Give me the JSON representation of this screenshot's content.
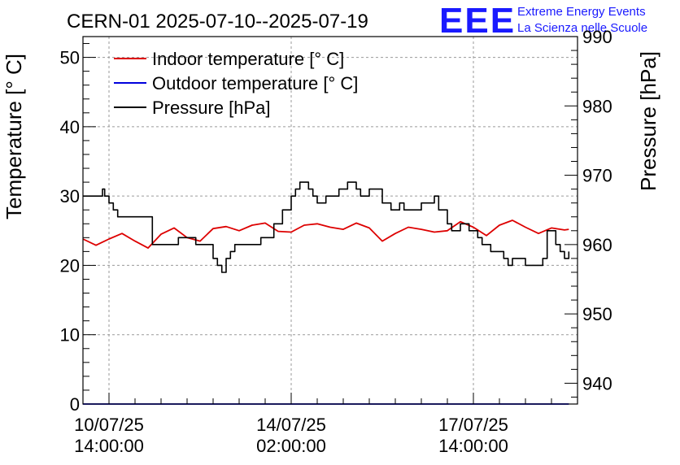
{
  "chart_data": {
    "type": "line",
    "title": "CERN-01 2025-07-10--2025-07-19",
    "ylabel_left": "Temperature [° C]",
    "ylabel_right": "Pressure [hPa]",
    "ylim_left": [
      0,
      53
    ],
    "ylim_right": [
      937,
      990
    ],
    "yticks_left": [
      0,
      10,
      20,
      30,
      40,
      50
    ],
    "yticks_right": [
      940,
      950,
      960,
      970,
      980,
      990
    ],
    "xlim_hours": [
      -12,
      216
    ],
    "xticks": [
      {
        "hours": 0,
        "line1": "10/07/25",
        "line2": "14:00:00"
      },
      {
        "hours": 84,
        "line1": "14/07/25",
        "line2": "02:00:00"
      },
      {
        "hours": 168,
        "line1": "17/07/25",
        "line2": "14:00:00"
      }
    ],
    "grid": true,
    "legend_position": "top-left",
    "series": [
      {
        "name": "Indoor temperature [° C]",
        "color": "#dd0000",
        "axis": "left",
        "x": [
          -12,
          -6,
          0,
          6,
          12,
          18,
          24,
          30,
          36,
          42,
          48,
          54,
          60,
          66,
          72,
          78,
          84,
          90,
          96,
          102,
          108,
          114,
          120,
          126,
          132,
          138,
          144,
          150,
          156,
          162,
          168,
          174,
          180,
          186,
          192,
          198,
          204,
          210,
          212
        ],
        "values": [
          23.8,
          22.9,
          23.8,
          24.6,
          23.5,
          22.5,
          24.5,
          25.4,
          24.0,
          23.5,
          25.3,
          25.6,
          25.0,
          25.8,
          26.1,
          24.9,
          24.8,
          25.8,
          26.0,
          25.5,
          25.2,
          26.1,
          25.4,
          23.5,
          24.6,
          25.5,
          25.2,
          24.8,
          25.0,
          26.3,
          25.5,
          24.3,
          25.8,
          26.5,
          25.5,
          24.6,
          25.4,
          25.1,
          25.2
        ]
      },
      {
        "name": "Outdoor temperature [° C]",
        "color": "#0000dd",
        "axis": "left",
        "x": [
          -12,
          212
        ],
        "values": [
          0,
          0
        ]
      },
      {
        "name": "Pressure [hPa]",
        "color": "#000000",
        "axis": "right",
        "x": [
          -12,
          -4,
          -3,
          -2,
          0,
          2,
          4,
          8,
          10,
          20,
          24,
          28,
          32,
          40,
          44,
          48,
          50,
          52,
          54,
          56,
          58,
          60,
          66,
          70,
          76,
          80,
          84,
          86,
          88,
          90,
          92,
          94,
          96,
          100,
          104,
          106,
          110,
          114,
          116,
          120,
          122,
          126,
          130,
          134,
          136,
          140,
          144,
          150,
          152,
          156,
          158,
          162,
          166,
          170,
          172,
          174,
          176,
          180,
          182,
          184,
          186,
          190,
          192,
          196,
          200,
          202,
          206,
          208,
          210,
          212
        ],
        "values": [
          967,
          967,
          968,
          967,
          966,
          965,
          964,
          964,
          964,
          960,
          960,
          960,
          961,
          960,
          960,
          958,
          957,
          956,
          958,
          959,
          960,
          960,
          960,
          961,
          963,
          965,
          967,
          968,
          969,
          969,
          968,
          967,
          966,
          967,
          967,
          968,
          969,
          968,
          967,
          968,
          968,
          966,
          965,
          966,
          965,
          965,
          966,
          967,
          965,
          963,
          962,
          963,
          962,
          961,
          960,
          960,
          959,
          959,
          958,
          957,
          958,
          958,
          957,
          957,
          958,
          962,
          960,
          959,
          958,
          959
        ]
      }
    ]
  },
  "logo": {
    "acronym": "EEE",
    "line1": "Extreme Energy Events",
    "line2": "La Scienza nelle Scuole"
  }
}
